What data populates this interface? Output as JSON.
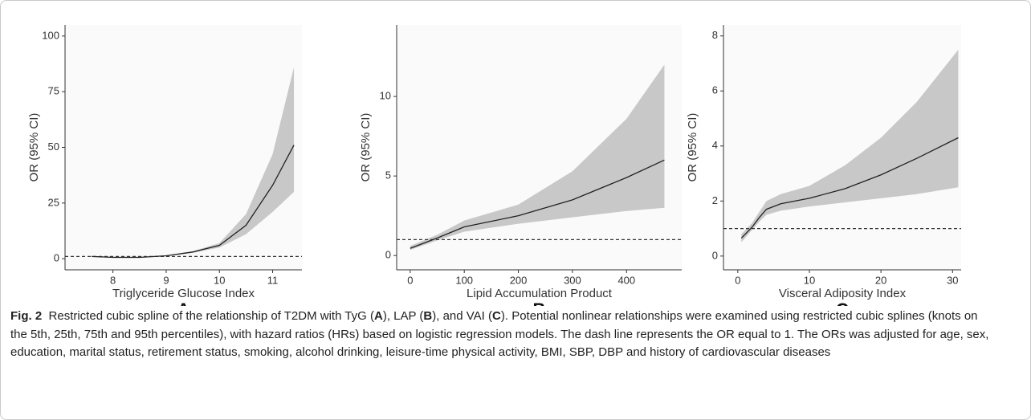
{
  "chart_data": [
    {
      "type": "line",
      "label": "A",
      "xlabel": "Triglyceride Glucose Index",
      "ylabel": "OR (95% CI)",
      "x": [
        7.6,
        8.0,
        8.5,
        9.0,
        9.5,
        10.0,
        10.5,
        11.0,
        11.4
      ],
      "series": [
        {
          "color": "#222222",
          "values": [
            1.0,
            0.6,
            0.6,
            1.3,
            3.0,
            6.0,
            15,
            33,
            51
          ]
        }
      ],
      "ci_lower": [
        0.8,
        0.4,
        0.4,
        1.1,
        2.6,
        5.0,
        11,
        21,
        30
      ],
      "ci_upper": [
        1.2,
        0.8,
        0.8,
        1.5,
        3.4,
        7.0,
        20,
        47,
        86
      ],
      "ci_color": "#c8c8c8",
      "reference_line": 1,
      "xlim": [
        7.1,
        11.55
      ],
      "ylim": [
        -5,
        105
      ],
      "xticks": [
        8,
        9,
        10,
        11
      ],
      "yticks": [
        0,
        25,
        50,
        75,
        100
      ]
    },
    {
      "type": "line",
      "label": "B",
      "xlabel": "Lipid Accumulation Product",
      "ylabel": "OR (95% CI)",
      "x": [
        0,
        50,
        100,
        200,
        300,
        400,
        470
      ],
      "series": [
        {
          "color": "#222222",
          "values": [
            0.45,
            1.1,
            1.8,
            2.5,
            3.5,
            4.9,
            6.0
          ]
        }
      ],
      "ci_lower": [
        0.35,
        0.95,
        1.5,
        2.0,
        2.4,
        2.8,
        3.0
      ],
      "ci_upper": [
        0.6,
        1.3,
        2.2,
        3.2,
        5.3,
        8.6,
        12.0
      ],
      "ci_color": "#c8c8c8",
      "reference_line": 1,
      "xlim": [
        -25,
        502
      ],
      "ylim": [
        -0.9,
        14.5
      ],
      "xticks": [
        0,
        100,
        200,
        300,
        400
      ],
      "yticks": [
        0,
        5,
        10
      ]
    },
    {
      "type": "line",
      "label": "C",
      "xlabel": "Visceral Adiposity Index",
      "ylabel": "OR (95% CI)",
      "x": [
        0.5,
        2,
        3,
        4,
        6,
        10,
        15,
        20,
        25,
        30.8
      ],
      "series": [
        {
          "color": "#222222",
          "values": [
            0.65,
            1.05,
            1.4,
            1.7,
            1.9,
            2.1,
            2.45,
            2.95,
            3.55,
            4.3
          ]
        }
      ],
      "ci_lower": [
        0.5,
        0.95,
        1.25,
        1.5,
        1.65,
        1.8,
        1.95,
        2.1,
        2.25,
        2.5
      ],
      "ci_upper": [
        0.8,
        1.2,
        1.6,
        2.0,
        2.25,
        2.55,
        3.3,
        4.3,
        5.6,
        7.5
      ],
      "ci_color": "#c8c8c8",
      "reference_line": 1,
      "xlim": [
        -2,
        31.2
      ],
      "ylim": [
        -0.5,
        8.4
      ],
      "xticks": [
        0,
        10,
        20,
        30
      ],
      "yticks": [
        0,
        2,
        4,
        6,
        8
      ]
    }
  ],
  "caption": {
    "figure": "Fig. 2",
    "parts": [
      "Restricted cubic spline of the relationship of T2DM with TyG (",
      "A",
      "), LAP (",
      "B",
      "), and VAI (",
      "C",
      "). Potential nonlinear relationships were examined using restricted cubic splines (knots on the 5th, 25th, 75th and 95th percentiles), with hazard ratios (HRs) based on logistic regression models. The dash line represents the OR equal to 1. The ORs was adjusted for age, sex, education, marital status, retirement status, smoking, alcohol drinking, leisure-time physical activity, BMI, SBP, DBP and history of cardiovascular diseases"
    ]
  }
}
